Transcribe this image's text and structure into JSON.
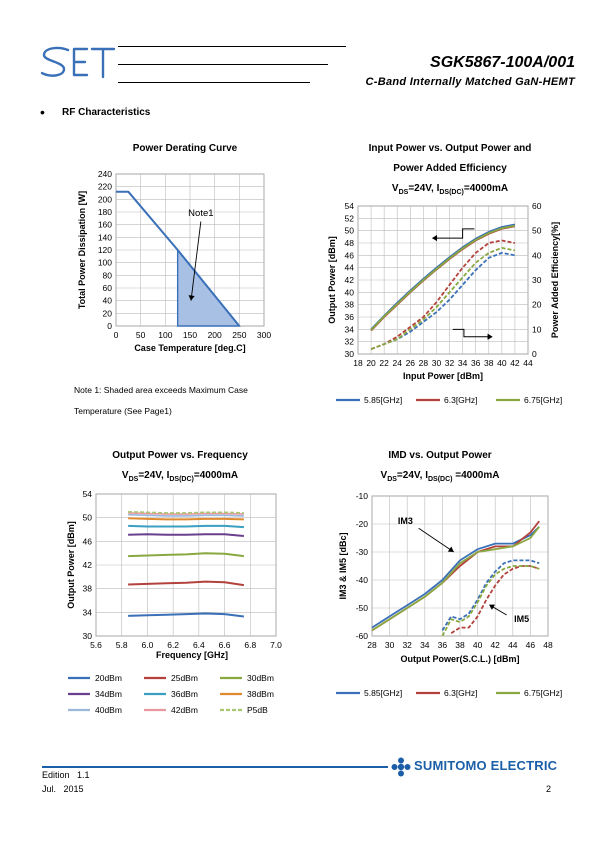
{
  "header": {
    "logo_text": "SET",
    "part_number": "SGK5867-100A/001",
    "subtitle": "C-Band Internally Matched GaN-HEMT"
  },
  "section": {
    "bullet": "•",
    "title": "RF Characteristics"
  },
  "note": {
    "line1": "Note 1: Shaded area exceeds Maximum Case",
    "line2": "Temperature (See Page1)"
  },
  "charts": {
    "derating": {
      "title": "Power Derating Curve",
      "xlabel": "Case Temperature [deg.C]",
      "ylabel": "Total Power Dissipation [W]",
      "annotation": "Note1"
    },
    "pin_pout": {
      "title1": "Input Power vs. Output Power and",
      "title2": "Power Added Efficiency",
      "cond": "VDS=24V, IDS(DC)=4000mA",
      "xlabel": "Input Power [dBm]",
      "ylabel_left": "Output Power [dBm]",
      "ylabel_right": "Power Added Efficiency[%]"
    },
    "pout_freq": {
      "title": "Output Power vs. Frequency",
      "cond": "VDS=24V, IDS(DC)=4000mA",
      "xlabel": "Frequency [GHz]",
      "ylabel": "Output Power [dBm]"
    },
    "imd": {
      "title": "IMD vs. Output Power",
      "cond": "VDS=24V, IDS(DC) =4000mA",
      "xlabel": "Output Power(S.C.L.) [dBm]",
      "ylabel": "IM3 & IM5 [dBc]",
      "label_im3": "IM3",
      "label_im5": "IM5"
    }
  },
  "legend_freq": [
    "5.85[GHz]",
    "6.3[GHz]",
    "6.75[GHz]"
  ],
  "legend_levels": [
    "20dBm",
    "25dBm",
    "30dBm",
    "34dBm",
    "36dBm",
    "38dBm",
    "40dBm",
    "42dBm",
    "P5dB"
  ],
  "colors": {
    "blue": "#3a70b8",
    "red": "#b3423c",
    "green": "#8aa840",
    "purple": "#6a3f8e",
    "teal": "#3a9fc0",
    "orange": "#e08a30",
    "lightblue": "#9ab7dc",
    "pink": "#e89aa0",
    "lightgreen": "#a8c870",
    "shade": "#a8c0e4",
    "sumitomo": "#1b5fa8"
  },
  "footer": {
    "edition": "Edition   1.1",
    "date": "Jul.   2015",
    "page": "2",
    "brand": "SUMITOMO ELECTRIC"
  },
  "chart_data": [
    {
      "type": "line",
      "name": "derating",
      "x": [
        0,
        25,
        125,
        250
      ],
      "series": [
        {
          "values": [
            212,
            212,
            120,
            0
          ]
        }
      ],
      "shaded_polygon": [
        [
          125,
          120
        ],
        [
          125,
          0
        ],
        [
          250,
          0
        ]
      ],
      "xlim": [
        0,
        300
      ],
      "ylim": [
        0,
        240
      ],
      "xticks": [
        0,
        50,
        100,
        150,
        200,
        250,
        300
      ],
      "yticks": [
        0,
        20,
        40,
        60,
        80,
        100,
        120,
        140,
        160,
        180,
        200,
        220,
        240
      ],
      "grid": true
    },
    {
      "type": "line",
      "name": "pin_pout",
      "xlim": [
        18,
        44
      ],
      "ylim": [
        30,
        54
      ],
      "y2lim": [
        0,
        60
      ],
      "xticks": [
        18,
        20,
        22,
        24,
        26,
        28,
        30,
        32,
        34,
        36,
        38,
        40,
        42,
        44
      ],
      "yticks": [
        30,
        32,
        34,
        36,
        38,
        40,
        42,
        44,
        46,
        48,
        50,
        52,
        54
      ],
      "y2ticks": [
        0,
        10,
        20,
        30,
        40,
        50,
        60
      ],
      "x": [
        20,
        22,
        24,
        26,
        28,
        30,
        32,
        34,
        36,
        38,
        40,
        42
      ],
      "pout": [
        {
          "name": "5.85[GHz]",
          "values": [
            34.0,
            36.2,
            38.3,
            40.3,
            42.2,
            44.0,
            45.7,
            47.3,
            48.7,
            49.8,
            50.6,
            51.0
          ]
        },
        {
          "name": "6.3[GHz]",
          "values": [
            33.8,
            36.0,
            38.0,
            40.0,
            41.9,
            43.7,
            45.4,
            47.0,
            48.4,
            49.5,
            50.3,
            50.7
          ]
        },
        {
          "name": "6.75[GHz]",
          "values": [
            33.9,
            36.1,
            38.1,
            40.1,
            42.0,
            43.8,
            45.5,
            47.1,
            48.5,
            49.6,
            50.4,
            50.8
          ]
        }
      ],
      "pae": [
        {
          "name": "5.85[GHz]",
          "values": [
            2,
            4,
            6,
            9,
            13,
            17,
            22,
            28,
            34,
            39,
            41,
            40
          ]
        },
        {
          "name": "6.3[GHz]",
          "values": [
            2,
            4,
            7,
            11,
            15,
            21,
            28,
            35,
            41,
            45,
            46,
            45
          ]
        },
        {
          "name": "6.75[GHz]",
          "values": [
            2,
            4,
            6,
            10,
            14,
            19,
            25,
            31,
            37,
            41,
            43,
            42
          ]
        }
      ],
      "grid": true
    },
    {
      "type": "line",
      "name": "pout_freq",
      "xlim": [
        5.6,
        7.0
      ],
      "ylim": [
        30,
        54
      ],
      "xticks": [
        5.6,
        5.8,
        6.0,
        6.2,
        6.4,
        6.6,
        6.8,
        7.0
      ],
      "yticks": [
        30,
        34,
        38,
        42,
        46,
        50,
        54
      ],
      "x": [
        5.85,
        6.0,
        6.15,
        6.3,
        6.45,
        6.6,
        6.75
      ],
      "series": [
        {
          "name": "20dBm",
          "values": [
            33.4,
            33.5,
            33.6,
            33.7,
            33.8,
            33.7,
            33.3
          ]
        },
        {
          "name": "25dBm",
          "values": [
            38.7,
            38.8,
            38.9,
            39.0,
            39.2,
            39.1,
            38.6
          ]
        },
        {
          "name": "30dBm",
          "values": [
            43.5,
            43.6,
            43.7,
            43.8,
            44.0,
            43.9,
            43.5
          ]
        },
        {
          "name": "34dBm",
          "values": [
            47.1,
            47.2,
            47.1,
            47.1,
            47.2,
            47.2,
            46.9
          ]
        },
        {
          "name": "36dBm",
          "values": [
            48.6,
            48.5,
            48.5,
            48.5,
            48.6,
            48.6,
            48.4
          ]
        },
        {
          "name": "38dBm",
          "values": [
            49.9,
            49.8,
            49.7,
            49.7,
            49.8,
            49.8,
            49.7
          ]
        },
        {
          "name": "40dBm",
          "values": [
            50.5,
            50.4,
            50.3,
            50.3,
            50.4,
            50.4,
            50.3
          ]
        },
        {
          "name": "42dBm",
          "values": [
            50.8,
            50.7,
            50.6,
            50.6,
            50.7,
            50.7,
            50.6
          ]
        },
        {
          "name": "P5dB",
          "values": [
            51.0,
            50.9,
            50.8,
            50.8,
            50.9,
            50.9,
            50.8
          ]
        }
      ],
      "grid": true
    },
    {
      "type": "line",
      "name": "imd",
      "xlim": [
        28,
        48
      ],
      "ylim": [
        -60,
        -10
      ],
      "xticks": [
        28,
        30,
        32,
        34,
        36,
        38,
        40,
        42,
        44,
        46,
        48
      ],
      "yticks": [
        -60,
        -50,
        -40,
        -30,
        -20,
        -10
      ],
      "im3": [
        {
          "name": "5.85[GHz]",
          "x": [
            28,
            30,
            32,
            34,
            36,
            38,
            40,
            42,
            44,
            46,
            47
          ],
          "values": [
            -57,
            -53,
            -49,
            -45,
            -40,
            -33,
            -29,
            -27,
            -27,
            -24,
            -21
          ]
        },
        {
          "name": "6.3[GHz]",
          "x": [
            28,
            30,
            32,
            34,
            36,
            38,
            40,
            42,
            44,
            46,
            47
          ],
          "values": [
            -58,
            -54,
            -50,
            -46,
            -41,
            -35,
            -30,
            -28,
            -28,
            -23,
            -19
          ]
        },
        {
          "name": "6.75[GHz]",
          "x": [
            28,
            30,
            32,
            34,
            36,
            38,
            40,
            42,
            44,
            46,
            47
          ],
          "values": [
            -58,
            -54,
            -50,
            -46,
            -41,
            -34,
            -30,
            -29,
            -28,
            -25,
            -21
          ]
        }
      ],
      "im5": [
        {
          "name": "5.85[GHz]",
          "x": [
            36,
            37,
            38,
            39,
            40,
            41,
            42,
            43,
            44,
            45,
            46,
            47
          ],
          "values": [
            -58,
            -53,
            -54,
            -52,
            -47,
            -41,
            -37,
            -34,
            -33,
            -33,
            -33,
            -34
          ]
        },
        {
          "name": "6.3[GHz]",
          "x": [
            37,
            38,
            39,
            40,
            41,
            42,
            43,
            44,
            45,
            46,
            47
          ],
          "values": [
            -59,
            -57,
            -57,
            -53,
            -47,
            -42,
            -38,
            -36,
            -35,
            -35,
            -36
          ]
        },
        {
          "name": "6.75[GHz]",
          "x": [
            36,
            37,
            38,
            39,
            40,
            41,
            42,
            43,
            44,
            45,
            46,
            47
          ],
          "values": [
            -60,
            -54,
            -55,
            -53,
            -48,
            -42,
            -38,
            -36,
            -35,
            -35,
            -35,
            -36
          ]
        }
      ],
      "grid": true
    }
  ]
}
